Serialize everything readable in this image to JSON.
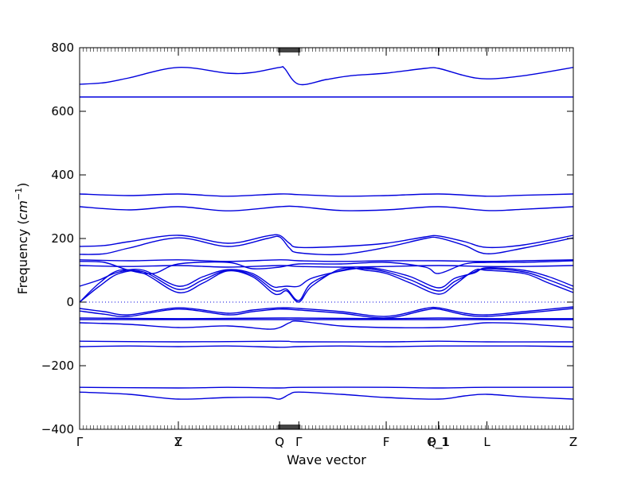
{
  "chart_data": {
    "type": "line",
    "xlabel": "Wave vector",
    "ylabel_prefix": "Frequency (",
    "ylabel_unit": "cm",
    "ylabel_exp": "−1",
    "ylabel_suffix": ")",
    "ylim": [
      -400,
      800
    ],
    "yticks": [
      -400,
      -200,
      0,
      200,
      400,
      600,
      800
    ],
    "ytick_labels": [
      "−400",
      "−200",
      "0",
      "200",
      "400",
      "600",
      "800"
    ],
    "x_range": [
      0,
      1
    ],
    "high_symmetry_points": [
      {
        "label": "Γ",
        "x": 0.0
      },
      {
        "label": "Y",
        "x": 0.2
      },
      {
        "label": "Z",
        "x": 0.2
      },
      {
        "label": "Q",
        "x": 0.405
      },
      {
        "label": "Γ",
        "x": 0.444
      },
      {
        "label": "F",
        "x": 0.621
      },
      {
        "label": "P_1",
        "x": 0.727
      },
      {
        "label": "Q_1",
        "x": 0.727
      },
      {
        "label": "L",
        "x": 0.825
      },
      {
        "label": "Z",
        "x": 1.0
      }
    ],
    "zero_line": 0,
    "line_color": "#0000dd",
    "series": [
      {
        "x": [
          0,
          0.05,
          0.1,
          0.2,
          0.3,
          0.35,
          0.405,
          0.415,
          0.444,
          0.5,
          0.55,
          0.621,
          0.7,
          0.727,
          0.78,
          0.825,
          0.9,
          1.0
        ],
        "values": [
          685,
          690,
          705,
          738,
          720,
          722,
          738,
          735,
          685,
          700,
          712,
          720,
          735,
          735,
          712,
          702,
          712,
          738
        ]
      },
      {
        "x": [
          0,
          0.2,
          0.405,
          0.444,
          0.621,
          0.727,
          0.825,
          1.0
        ],
        "values": [
          645,
          645,
          645,
          645,
          645,
          645,
          645,
          645
        ]
      },
      {
        "x": [
          0,
          0.1,
          0.2,
          0.3,
          0.405,
          0.444,
          0.53,
          0.621,
          0.727,
          0.825,
          0.9,
          1.0
        ],
        "values": [
          340,
          335,
          340,
          333,
          340,
          338,
          333,
          335,
          340,
          333,
          336,
          340
        ]
      },
      {
        "x": [
          0,
          0.1,
          0.2,
          0.3,
          0.405,
          0.444,
          0.53,
          0.621,
          0.727,
          0.825,
          0.9,
          1.0
        ],
        "values": [
          300,
          290,
          300,
          287,
          300,
          300,
          288,
          290,
          300,
          288,
          292,
          300
        ]
      },
      {
        "x": [
          0,
          0.05,
          0.1,
          0.2,
          0.3,
          0.38,
          0.405,
          0.425,
          0.444,
          0.53,
          0.621,
          0.7,
          0.727,
          0.78,
          0.825,
          0.9,
          1.0
        ],
        "values": [
          175,
          178,
          190,
          210,
          185,
          208,
          210,
          185,
          172,
          175,
          185,
          205,
          208,
          190,
          172,
          180,
          210
        ]
      },
      {
        "x": [
          0,
          0.05,
          0.1,
          0.2,
          0.3,
          0.38,
          0.405,
          0.425,
          0.444,
          0.53,
          0.621,
          0.7,
          0.727,
          0.78,
          0.825,
          0.9,
          1.0
        ],
        "values": [
          150,
          152,
          170,
          202,
          175,
          200,
          205,
          170,
          155,
          150,
          172,
          200,
          202,
          178,
          152,
          170,
          202
        ]
      },
      {
        "x": [
          0,
          0.1,
          0.2,
          0.3,
          0.405,
          0.444,
          0.53,
          0.621,
          0.727,
          0.825,
          0.9,
          1.0
        ],
        "values": [
          133,
          130,
          133,
          128,
          133,
          130,
          128,
          130,
          130,
          128,
          130,
          133
        ]
      },
      {
        "x": [
          0,
          0.05,
          0.1,
          0.15,
          0.2,
          0.3,
          0.35,
          0.405,
          0.444,
          0.53,
          0.621,
          0.7,
          0.727,
          0.78,
          0.825,
          0.9,
          1.0
        ],
        "values": [
          128,
          125,
          100,
          90,
          120,
          125,
          105,
          110,
          120,
          120,
          125,
          110,
          90,
          120,
          125,
          125,
          130
        ]
      },
      {
        "x": [
          0,
          0.1,
          0.2,
          0.3,
          0.405,
          0.444,
          0.53,
          0.621,
          0.727,
          0.825,
          0.9,
          1.0
        ],
        "values": [
          115,
          112,
          115,
          110,
          115,
          112,
          110,
          112,
          115,
          112,
          112,
          115
        ]
      },
      {
        "x": [
          0,
          0.04,
          0.08,
          0.13,
          0.2,
          0.25,
          0.3,
          0.35,
          0.39,
          0.405,
          0.42,
          0.444,
          0.47,
          0.53,
          0.58,
          0.621,
          0.67,
          0.727,
          0.76,
          0.8,
          0.825,
          0.9,
          0.95,
          1.0
        ],
        "values": [
          0,
          60,
          100,
          90,
          30,
          60,
          98,
          80,
          30,
          25,
          35,
          0,
          50,
          105,
          100,
          90,
          60,
          25,
          55,
          100,
          100,
          90,
          60,
          30
        ]
      },
      {
        "x": [
          0,
          0.04,
          0.08,
          0.13,
          0.2,
          0.25,
          0.3,
          0.35,
          0.39,
          0.405,
          0.42,
          0.444,
          0.47,
          0.53,
          0.58,
          0.621,
          0.67,
          0.727,
          0.76,
          0.8,
          0.825,
          0.9,
          0.95,
          1.0
        ],
        "values": [
          0,
          50,
          90,
          95,
          40,
          70,
          100,
          85,
          40,
          35,
          40,
          5,
          60,
          100,
          105,
          95,
          70,
          35,
          65,
          95,
          105,
          95,
          70,
          40
        ]
      },
      {
        "x": [
          0,
          0.04,
          0.08,
          0.13,
          0.2,
          0.25,
          0.3,
          0.35,
          0.39,
          0.405,
          0.42,
          0.444,
          0.47,
          0.53,
          0.58,
          0.621,
          0.67,
          0.727,
          0.76,
          0.8,
          0.825,
          0.9,
          0.95,
          1.0
        ],
        "values": [
          50,
          70,
          95,
          100,
          50,
          80,
          102,
          90,
          50,
          48,
          50,
          50,
          75,
          98,
          108,
          100,
          80,
          45,
          75,
          92,
          108,
          100,
          80,
          50
        ]
      },
      {
        "x": [
          0,
          0.05,
          0.1,
          0.2,
          0.3,
          0.35,
          0.405,
          0.444,
          0.53,
          0.621,
          0.7,
          0.727,
          0.78,
          0.825,
          0.9,
          1.0
        ],
        "values": [
          -20,
          -30,
          -40,
          -18,
          -35,
          -25,
          -18,
          -20,
          -30,
          -45,
          -20,
          -18,
          -35,
          -40,
          -30,
          -15
        ]
      },
      {
        "x": [
          0,
          0.05,
          0.1,
          0.2,
          0.3,
          0.35,
          0.405,
          0.444,
          0.53,
          0.621,
          0.7,
          0.727,
          0.78,
          0.825,
          0.9,
          1.0
        ],
        "values": [
          -28,
          -38,
          -45,
          -22,
          -40,
          -30,
          -22,
          -25,
          -35,
          -50,
          -25,
          -22,
          -40,
          -45,
          -35,
          -20
        ]
      },
      {
        "x": [
          0,
          0.2,
          0.405,
          0.444,
          0.621,
          0.727,
          0.825,
          1.0
        ],
        "values": [
          -50,
          -52,
          -50,
          -50,
          -52,
          -50,
          -52,
          -52
        ]
      },
      {
        "x": [
          0,
          0.1,
          0.2,
          0.3,
          0.405,
          0.444,
          0.53,
          0.621,
          0.727,
          0.825,
          0.9,
          1.0
        ],
        "values": [
          -55,
          -55,
          -55,
          -55,
          -55,
          -55,
          -55,
          -55,
          -55,
          -55,
          -55,
          -55
        ]
      },
      {
        "x": [
          0,
          0.1,
          0.2,
          0.3,
          0.38,
          0.405,
          0.425,
          0.444,
          0.53,
          0.621,
          0.727,
          0.78,
          0.825,
          0.9,
          1.0
        ],
        "values": [
          -65,
          -70,
          -80,
          -75,
          -85,
          -80,
          -65,
          -60,
          -75,
          -80,
          -80,
          -72,
          -65,
          -68,
          -80
        ]
      },
      {
        "x": [
          0,
          0.2,
          0.405,
          0.444,
          0.621,
          0.727,
          0.825,
          1.0
        ],
        "values": [
          -123,
          -125,
          -123,
          -125,
          -125,
          -123,
          -125,
          -125
        ]
      },
      {
        "x": [
          0,
          0.1,
          0.2,
          0.3,
          0.405,
          0.444,
          0.53,
          0.621,
          0.727,
          0.825,
          0.9,
          1.0
        ],
        "values": [
          -140,
          -138,
          -140,
          -138,
          -142,
          -140,
          -138,
          -140,
          -138,
          -138,
          -138,
          -140
        ]
      },
      {
        "x": [
          0,
          0.2,
          0.3,
          0.405,
          0.444,
          0.621,
          0.727,
          0.825,
          1.0
        ],
        "values": [
          -268,
          -270,
          -268,
          -270,
          -268,
          -268,
          -270,
          -268,
          -268
        ]
      },
      {
        "x": [
          0,
          0.1,
          0.2,
          0.3,
          0.38,
          0.405,
          0.425,
          0.444,
          0.53,
          0.621,
          0.727,
          0.78,
          0.825,
          0.9,
          1.0
        ],
        "values": [
          -283,
          -290,
          -305,
          -300,
          -300,
          -305,
          -290,
          -283,
          -290,
          -300,
          -305,
          -295,
          -290,
          -298,
          -305
        ]
      }
    ]
  }
}
